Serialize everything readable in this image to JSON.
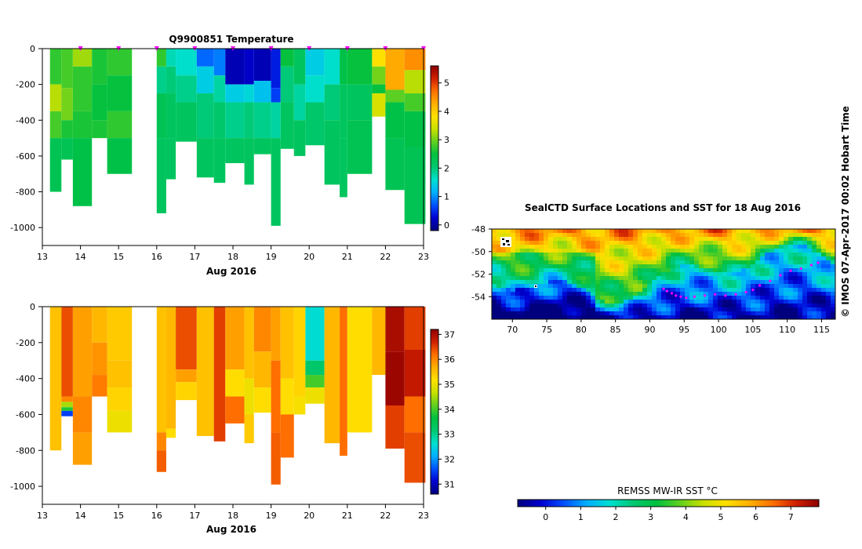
{
  "colors": {
    "temperature_scale": [
      "#00007f",
      "#0000d0",
      "#0050ff",
      "#00b0ff",
      "#00dfcf",
      "#00c870",
      "#00c040",
      "#60d020",
      "#c8e000",
      "#ffe000",
      "#ffb000",
      "#ff7000",
      "#d02000",
      "#8f0000"
    ],
    "profile_marker": "#ff00ff",
    "track": "#ff00ff",
    "axis": "#000000"
  },
  "top_chart": {
    "title": "Q9900851  Temperature",
    "xlabel": "Aug 2016",
    "x_ticks": [
      "13",
      "14",
      "15",
      "16",
      "17",
      "18",
      "19",
      "20",
      "21",
      "22",
      "23"
    ],
    "y_ticks": [
      "0",
      "-200",
      "-400",
      "-600",
      "-800",
      "-1000"
    ],
    "colorbar_ticks": [
      "0",
      "1",
      "2",
      "3",
      "4",
      "5"
    ]
  },
  "bottom_chart": {
    "xlabel": "Aug 2016",
    "x_ticks": [
      "13",
      "14",
      "15",
      "16",
      "17",
      "18",
      "19",
      "20",
      "21",
      "22",
      "23"
    ],
    "y_ticks": [
      "0",
      "-200",
      "-400",
      "-600",
      "-800",
      "-1000"
    ],
    "colorbar_ticks": [
      "31",
      "32",
      "33",
      "34",
      "35",
      "36",
      "37"
    ]
  },
  "map": {
    "title": "SealCTD Surface Locations and SST for 18 Aug 2016",
    "lat_ticks": [
      "-48",
      "-50",
      "-52",
      "-54"
    ],
    "lon_ticks": [
      "70",
      "75",
      "80",
      "85",
      "90",
      "95",
      "100",
      "105",
      "110",
      "115"
    ],
    "colorbar_label": "REMSS MW-IR SST °C",
    "colorbar_ticks": [
      "0",
      "1",
      "2",
      "3",
      "4",
      "5",
      "6",
      "7"
    ]
  },
  "watermark": "©  IMOS 07-Apr-2017 00:02 Hobart Time",
  "chart_data": [
    {
      "type": "heatmap",
      "title": "Q9900851  Temperature",
      "xlabel": "Aug 2016",
      "ylabel": "",
      "xlim": [
        13,
        23
      ],
      "ylim": [
        -1100,
        0
      ],
      "color_range": [
        -0.2,
        5.6
      ],
      "profile_times": [
        14,
        15,
        16,
        17,
        18,
        19,
        20,
        21,
        22,
        23
      ],
      "profiles": [
        {
          "x0": 13.2,
          "x1": 13.5,
          "max_depth": 800,
          "layers": [
            [
              0,
              2.7
            ],
            [
              200,
              3.3
            ],
            [
              350,
              2.8
            ],
            [
              500,
              2.3
            ]
          ]
        },
        {
          "x0": 13.5,
          "x1": 13.8,
          "max_depth": 620,
          "layers": [
            [
              0,
              2.8
            ],
            [
              220,
              3.0
            ],
            [
              400,
              2.6
            ],
            [
              500,
              2.3
            ]
          ]
        },
        {
          "x0": 13.8,
          "x1": 14.3,
          "max_depth": 880,
          "layers": [
            [
              0,
              3.2
            ],
            [
              100,
              2.7
            ],
            [
              350,
              2.6
            ],
            [
              500,
              2.4
            ]
          ]
        },
        {
          "x0": 14.3,
          "x1": 14.7,
          "max_depth": 500,
          "layers": [
            [
              0,
              2.6
            ],
            [
              200,
              2.5
            ],
            [
              400,
              2.6
            ]
          ]
        },
        {
          "x0": 14.7,
          "x1": 15.35,
          "max_depth": 700,
          "layers": [
            [
              0,
              2.7
            ],
            [
              150,
              2.5
            ],
            [
              350,
              2.7
            ],
            [
              500,
              2.4
            ]
          ]
        },
        {
          "x0": 16.0,
          "x1": 16.25,
          "max_depth": 920,
          "layers": [
            [
              0,
              2.7
            ],
            [
              100,
              1.9
            ],
            [
              250,
              2.3
            ],
            [
              500,
              2.2
            ]
          ]
        },
        {
          "x0": 16.25,
          "x1": 16.5,
          "max_depth": 730,
          "layers": [
            [
              0,
              1.7
            ],
            [
              100,
              2.0
            ],
            [
              250,
              2.2
            ],
            [
              500,
              2.2
            ]
          ]
        },
        {
          "x0": 16.5,
          "x1": 17.05,
          "max_depth": 520,
          "layers": [
            [
              0,
              1.6
            ],
            [
              150,
              1.9
            ],
            [
              300,
              2.2
            ]
          ]
        },
        {
          "x0": 17.05,
          "x1": 17.5,
          "max_depth": 720,
          "layers": [
            [
              0,
              0.8
            ],
            [
              100,
              1.4
            ],
            [
              250,
              2.0
            ],
            [
              500,
              2.2
            ]
          ]
        },
        {
          "x0": 17.5,
          "x1": 17.8,
          "max_depth": 750,
          "layers": [
            [
              0,
              0.9
            ],
            [
              150,
              1.8
            ],
            [
              300,
              2.1
            ],
            [
              500,
              2.2
            ]
          ]
        },
        {
          "x0": 17.8,
          "x1": 18.3,
          "max_depth": 640,
          "layers": [
            [
              0,
              0.1
            ],
            [
              200,
              1.4
            ],
            [
              300,
              1.9
            ],
            [
              500,
              2.2
            ]
          ]
        },
        {
          "x0": 18.3,
          "x1": 18.55,
          "max_depth": 760,
          "layers": [
            [
              0,
              0.2
            ],
            [
              200,
              1.5
            ],
            [
              300,
              2.0
            ],
            [
              500,
              2.2
            ]
          ]
        },
        {
          "x0": 18.55,
          "x1": 19.0,
          "max_depth": 590,
          "layers": [
            [
              0,
              0.1
            ],
            [
              180,
              1.3
            ],
            [
              300,
              1.9
            ],
            [
              500,
              2.2
            ]
          ]
        },
        {
          "x0": 19.0,
          "x1": 19.25,
          "max_depth": 990,
          "layers": [
            [
              0,
              0.4
            ],
            [
              220,
              0.6
            ],
            [
              300,
              1.8
            ],
            [
              500,
              2.2
            ]
          ]
        },
        {
          "x0": 19.25,
          "x1": 19.6,
          "max_depth": 560,
          "layers": [
            [
              0,
              2.5
            ],
            [
              100,
              2.0
            ],
            [
              300,
              2.2
            ]
          ]
        },
        {
          "x0": 19.6,
          "x1": 19.9,
          "max_depth": 600,
          "layers": [
            [
              0,
              2.2
            ],
            [
              200,
              1.8
            ],
            [
              400,
              2.2
            ]
          ]
        },
        {
          "x0": 19.9,
          "x1": 20.4,
          "max_depth": 540,
          "layers": [
            [
              0,
              1.4
            ],
            [
              150,
              1.6
            ],
            [
              300,
              2.1
            ]
          ]
        },
        {
          "x0": 20.4,
          "x1": 20.8,
          "max_depth": 760,
          "layers": [
            [
              0,
              1.6
            ],
            [
              200,
              2.0
            ],
            [
              400,
              2.2
            ]
          ]
        },
        {
          "x0": 20.8,
          "x1": 21.0,
          "max_depth": 830,
          "layers": [
            [
              0,
              2.4
            ],
            [
              200,
              2.2
            ],
            [
              500,
              2.2
            ]
          ]
        },
        {
          "x0": 21.0,
          "x1": 21.65,
          "max_depth": 700,
          "layers": [
            [
              0,
              2.5
            ],
            [
              200,
              2.2
            ],
            [
              400,
              2.3
            ]
          ]
        },
        {
          "x0": 21.65,
          "x1": 22.0,
          "max_depth": 380,
          "layers": [
            [
              0,
              3.8
            ],
            [
              100,
              3.0
            ],
            [
              200,
              2.5
            ],
            [
              250,
              3.5
            ]
          ]
        },
        {
          "x0": 22.0,
          "x1": 22.5,
          "max_depth": 790,
          "layers": [
            [
              0,
              4.3
            ],
            [
              230,
              2.9
            ],
            [
              300,
              2.4
            ],
            [
              500,
              2.3
            ]
          ]
        },
        {
          "x0": 22.5,
          "x1": 23.05,
          "max_depth": 980,
          "layers": [
            [
              0,
              4.5
            ],
            [
              120,
              3.3
            ],
            [
              250,
              2.8
            ],
            [
              350,
              2.4
            ],
            [
              550,
              2.3
            ]
          ]
        }
      ]
    },
    {
      "type": "heatmap",
      "title": "",
      "xlabel": "Aug 2016",
      "ylabel": "",
      "xlim": [
        13,
        23
      ],
      "ylim": [
        -1100,
        0
      ],
      "color_range": [
        30.6,
        37.2
      ],
      "profiles": [
        {
          "x0": 13.2,
          "x1": 13.5,
          "max_depth": 800,
          "layers": [
            [
              0,
              35.5
            ]
          ]
        },
        {
          "x0": 13.5,
          "x1": 13.8,
          "max_depth": 610,
          "layers": [
            [
              0,
              36.4
            ],
            [
              500,
              36.0
            ],
            [
              530,
              34.5
            ],
            [
              560,
              33.8
            ],
            [
              580,
              31.5
            ]
          ]
        },
        {
          "x0": 13.8,
          "x1": 14.3,
          "max_depth": 880,
          "layers": [
            [
              0,
              35.8
            ],
            [
              500,
              36.0
            ],
            [
              700,
              35.8
            ]
          ]
        },
        {
          "x0": 14.3,
          "x1": 14.7,
          "max_depth": 500,
          "layers": [
            [
              0,
              35.6
            ],
            [
              200,
              35.9
            ],
            [
              380,
              36.1
            ]
          ]
        },
        {
          "x0": 14.7,
          "x1": 15.35,
          "max_depth": 700,
          "layers": [
            [
              0,
              35.4
            ],
            [
              300,
              35.5
            ],
            [
              450,
              35.3
            ],
            [
              580,
              35.0
            ]
          ]
        },
        {
          "x0": 16.0,
          "x1": 16.25,
          "max_depth": 920,
          "layers": [
            [
              0,
              35.5
            ],
            [
              700,
              36.0
            ],
            [
              800,
              36.3
            ]
          ]
        },
        {
          "x0": 16.25,
          "x1": 16.5,
          "max_depth": 730,
          "layers": [
            [
              0,
              35.6
            ],
            [
              680,
              35.2
            ]
          ]
        },
        {
          "x0": 16.5,
          "x1": 17.05,
          "max_depth": 520,
          "layers": [
            [
              0,
              36.4
            ],
            [
              350,
              35.8
            ],
            [
              420,
              35.3
            ]
          ]
        },
        {
          "x0": 17.05,
          "x1": 17.5,
          "max_depth": 720,
          "layers": [
            [
              0,
              35.5
            ]
          ]
        },
        {
          "x0": 17.5,
          "x1": 17.8,
          "max_depth": 750,
          "layers": [
            [
              0,
              36.5
            ]
          ]
        },
        {
          "x0": 17.8,
          "x1": 18.3,
          "max_depth": 650,
          "layers": [
            [
              0,
              35.8
            ],
            [
              350,
              35.2
            ],
            [
              500,
              36.2
            ]
          ]
        },
        {
          "x0": 18.3,
          "x1": 18.55,
          "max_depth": 760,
          "layers": [
            [
              0,
              35.5
            ],
            [
              400,
              35.0
            ],
            [
              600,
              35.4
            ]
          ]
        },
        {
          "x0": 18.55,
          "x1": 19.0,
          "max_depth": 590,
          "layers": [
            [
              0,
              36.0
            ],
            [
              250,
              35.6
            ],
            [
              450,
              35.2
            ]
          ]
        },
        {
          "x0": 19.0,
          "x1": 19.25,
          "max_depth": 990,
          "layers": [
            [
              0,
              35.8
            ],
            [
              300,
              36.2
            ],
            [
              700,
              36.3
            ]
          ]
        },
        {
          "x0": 19.25,
          "x1": 19.6,
          "max_depth": 840,
          "layers": [
            [
              0,
              35.5
            ],
            [
              400,
              35.2
            ],
            [
              600,
              36.2
            ]
          ]
        },
        {
          "x0": 19.6,
          "x1": 19.9,
          "max_depth": 600,
          "layers": [
            [
              0,
              35.3
            ],
            [
              500,
              35.1
            ]
          ]
        },
        {
          "x0": 19.9,
          "x1": 20.4,
          "max_depth": 540,
          "layers": [
            [
              0,
              32.6
            ],
            [
              300,
              33.2
            ],
            [
              380,
              34.0
            ],
            [
              450,
              35.0
            ]
          ]
        },
        {
          "x0": 20.4,
          "x1": 20.8,
          "max_depth": 760,
          "layers": [
            [
              0,
              35.6
            ]
          ]
        },
        {
          "x0": 20.8,
          "x1": 21.0,
          "max_depth": 830,
          "layers": [
            [
              0,
              36.2
            ]
          ]
        },
        {
          "x0": 21.0,
          "x1": 21.65,
          "max_depth": 700,
          "layers": [
            [
              0,
              35.2
            ]
          ]
        },
        {
          "x0": 21.65,
          "x1": 22.0,
          "max_depth": 380,
          "layers": [
            [
              0,
              35.6
            ]
          ]
        },
        {
          "x0": 22.0,
          "x1": 22.5,
          "max_depth": 790,
          "layers": [
            [
              0,
              37.0
            ],
            [
              250,
              37.1
            ],
            [
              550,
              36.5
            ]
          ]
        },
        {
          "x0": 22.5,
          "x1": 23.05,
          "max_depth": 980,
          "layers": [
            [
              0,
              36.5
            ],
            [
              240,
              36.8
            ],
            [
              500,
              36.2
            ],
            [
              700,
              36.4
            ]
          ]
        }
      ]
    },
    {
      "type": "heatmap",
      "title": "SealCTD Surface Locations and SST for 18 Aug 2016",
      "xlim": [
        67,
        117
      ],
      "ylim": [
        -56,
        -48
      ],
      "color_range": [
        -0.8,
        7.8
      ],
      "colorbar_label": "REMSS MW-IR SST °C",
      "track": [
        [
          92.0,
          -53.3
        ],
        [
          92.5,
          -53.5
        ],
        [
          93.2,
          -53.7
        ],
        [
          93.8,
          -53.9
        ],
        [
          94.5,
          -54.0
        ],
        [
          95.3,
          -54.1
        ],
        [
          96.5,
          -54.0
        ],
        [
          98.0,
          -53.9
        ],
        [
          99.5,
          -53.8
        ],
        [
          101.0,
          -53.9
        ],
        [
          102.5,
          -53.8
        ],
        [
          104.0,
          -53.6
        ],
        [
          105.0,
          -53.4
        ],
        [
          106.0,
          -53.0
        ],
        [
          107.5,
          -52.6
        ],
        [
          109.0,
          -52.1
        ],
        [
          110.5,
          -51.7
        ],
        [
          112.0,
          -51.5
        ],
        [
          113.5,
          -51.2
        ],
        [
          114.5,
          -51.0
        ]
      ]
    }
  ]
}
